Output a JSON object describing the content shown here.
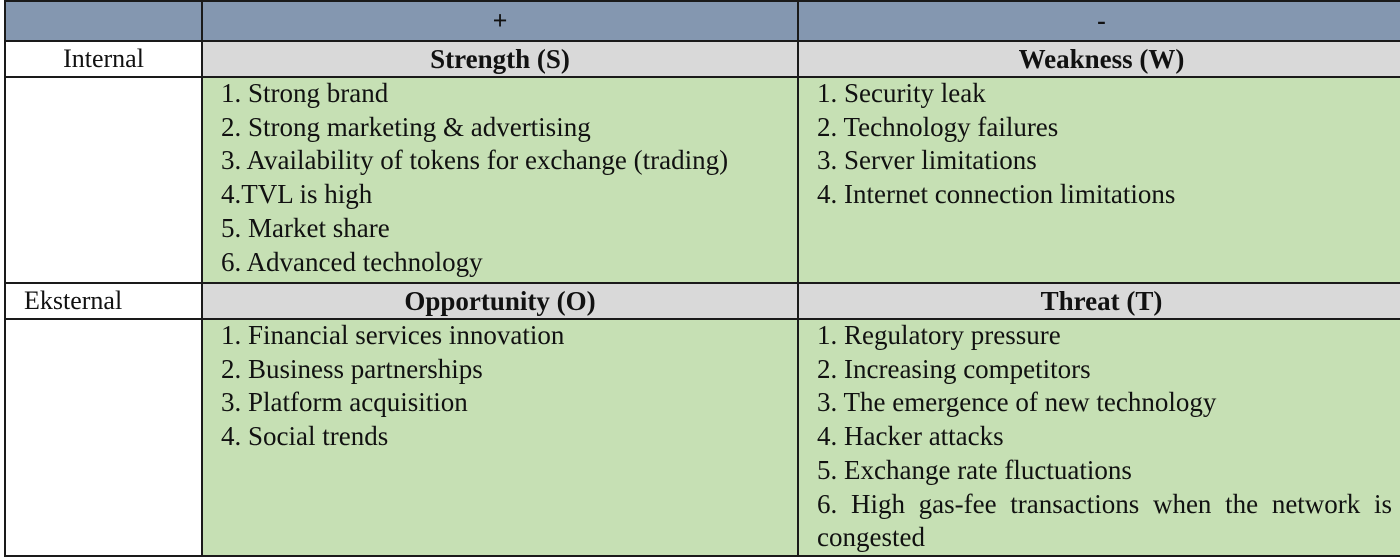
{
  "header": {
    "plus": "+",
    "minus": "-"
  },
  "internal": {
    "label": "Internal",
    "strength": {
      "title": "Strength (S)",
      "items": [
        "1. Strong brand",
        "2. Strong marketing & advertising",
        "3. Availability of tokens for exchange (trading)",
        "4.TVL is high",
        "5. Market share",
        "6. Advanced technology"
      ]
    },
    "weakness": {
      "title": "Weakness (W)",
      "items": [
        "1. Security leak",
        "2. Technology failures",
        "3. Server limitations",
        "4. Internet connection limitations"
      ]
    }
  },
  "external": {
    "label": "Eksternal",
    "opportunity": {
      "title": "Opportunity (O)",
      "items": [
        "1. Financial services innovation",
        "2. Business partnerships",
        "3. Platform acquisition",
        "4. Social trends"
      ]
    },
    "threat": {
      "title": "Threat (T)",
      "items": [
        "1. Regulatory pressure",
        "2. Increasing competitors",
        "3. The emergence of new technology",
        "4. Hacker attacks",
        "5. Exchange rate fluctuations",
        "6. High gas-fee transactions when the network is congested"
      ]
    }
  },
  "colors": {
    "header_blue": "#8497b0",
    "title_gray": "#d9d9d9",
    "cell_green": "#c6e0b4"
  }
}
